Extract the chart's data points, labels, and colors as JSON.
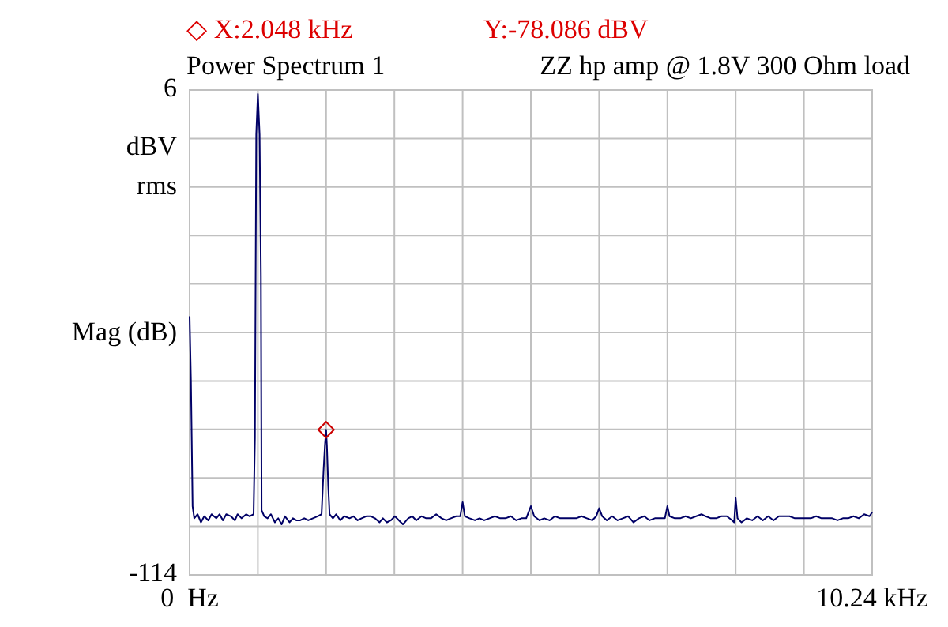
{
  "chart_data": {
    "type": "line",
    "title": "Power Spectrum 1",
    "subtitle": "ZZ hp amp @ 1.8V 300 Ohm load",
    "ylabel": "Mag (dB)",
    "annotations": [
      "◇ X:2.048 kHz",
      "Y:-78.086 dBV",
      "dBV",
      "rms"
    ],
    "xlim": [
      0,
      10.24
    ],
    "xticks": [
      {
        "value": 0,
        "label": "0  Hz"
      },
      {
        "value": 1.024,
        "label": null
      },
      {
        "value": 2.048,
        "label": null
      },
      {
        "value": 3.072,
        "label": null
      },
      {
        "value": 4.096,
        "label": null
      },
      {
        "value": 5.12,
        "label": null
      },
      {
        "value": 6.144,
        "label": null
      },
      {
        "value": 7.168,
        "label": null
      },
      {
        "value": 8.192,
        "label": null
      },
      {
        "value": 9.216,
        "label": null
      },
      {
        "value": 10.24,
        "label": "10.24 kHz"
      }
    ],
    "ylim": [
      -114,
      6
    ],
    "yticks": [
      6,
      {
        "value": -6,
        "label": null
      },
      {
        "value": -18,
        "label": null
      },
      {
        "value": -30,
        "label": null
      },
      {
        "value": -42,
        "label": null
      },
      {
        "value": -54,
        "label": null
      },
      {
        "value": -66,
        "label": null
      },
      {
        "value": -78,
        "label": null
      },
      {
        "value": -90,
        "label": null
      },
      {
        "value": -102,
        "label": null
      },
      -114
    ],
    "grid": true,
    "series": [
      {
        "color": "#000066",
        "marker": "none",
        "line_style": "solid",
        "x": [
          0,
          0.02,
          0.045,
          0.07,
          0.12,
          0.17,
          0.22,
          0.28,
          0.33,
          0.4,
          0.45,
          0.5,
          0.55,
          0.62,
          0.68,
          0.72,
          0.78,
          0.85,
          0.9,
          0.96,
          0.98,
          1.0,
          1.024,
          1.05,
          1.07,
          1.08,
          1.12,
          1.17,
          1.22,
          1.28,
          1.33,
          1.38,
          1.43,
          1.5,
          1.55,
          1.6,
          1.66,
          1.72,
          1.78,
          1.85,
          1.92,
          1.98,
          2.01,
          2.03,
          2.048,
          2.06,
          2.08,
          2.1,
          2.15,
          2.2,
          2.26,
          2.32,
          2.4,
          2.46,
          2.52,
          2.58,
          2.65,
          2.72,
          2.78,
          2.85,
          2.9,
          2.96,
          3.02,
          3.08,
          3.14,
          3.2,
          3.28,
          3.34,
          3.4,
          3.48,
          3.55,
          3.62,
          3.7,
          3.78,
          3.85,
          3.92,
          4.0,
          4.06,
          4.096,
          4.13,
          4.2,
          4.28,
          4.35,
          4.42,
          4.5,
          4.58,
          4.66,
          4.74,
          4.82,
          4.9,
          4.98,
          5.05,
          5.12,
          5.17,
          5.25,
          5.32,
          5.4,
          5.48,
          5.56,
          5.64,
          5.72,
          5.8,
          5.88,
          5.96,
          6.04,
          6.1,
          6.144,
          6.19,
          6.26,
          6.34,
          6.42,
          6.5,
          6.58,
          6.66,
          6.74,
          6.82,
          6.9,
          6.98,
          7.06,
          7.13,
          7.168,
          7.2,
          7.28,
          7.36,
          7.44,
          7.52,
          7.6,
          7.68,
          7.74,
          7.82,
          7.9,
          7.98,
          8.06,
          8.14,
          8.17,
          8.192,
          8.22,
          8.28,
          8.36,
          8.44,
          8.52,
          8.6,
          8.68,
          8.76,
          8.84,
          8.92,
          9.0,
          9.08,
          9.16,
          9.24,
          9.32,
          9.4,
          9.48,
          9.56,
          9.64,
          9.72,
          9.8,
          9.88,
          9.96,
          10.04,
          10.12,
          10.2,
          10.24
        ],
        "values": [
          -50,
          -66,
          -97,
          -100,
          -99,
          -101,
          -99.5,
          -100.5,
          -99,
          -100,
          -99,
          -100.5,
          -99,
          -99.5,
          -100.5,
          -99,
          -100,
          -99,
          -99.5,
          -99,
          -80,
          -5,
          5,
          -5,
          -40,
          -98,
          -99.5,
          -100,
          -99,
          -101,
          -100,
          -101.5,
          -99.5,
          -101,
          -100,
          -100.5,
          -100.5,
          -100,
          -100.5,
          -100,
          -99.5,
          -99,
          -88,
          -82,
          -78.086,
          -82,
          -92,
          -99,
          -100,
          -99,
          -100.5,
          -99.5,
          -100,
          -99.5,
          -100.5,
          -100,
          -99.5,
          -99.5,
          -100,
          -101,
          -100,
          -101,
          -100.5,
          -99.5,
          -100.5,
          -101.5,
          -100,
          -99.5,
          -100.5,
          -99.5,
          -100,
          -100,
          -99,
          -100,
          -100.5,
          -100,
          -99.5,
          -99.5,
          -96,
          -99.5,
          -100,
          -100.5,
          -100,
          -100.5,
          -100,
          -99.5,
          -100,
          -100,
          -99.5,
          -100.5,
          -100,
          -100,
          -97,
          -99.5,
          -100.5,
          -100,
          -100.5,
          -99.5,
          -100,
          -100,
          -100,
          -100,
          -99.5,
          -100,
          -100.5,
          -99.5,
          -97.5,
          -99.5,
          -100.5,
          -99.5,
          -100.5,
          -100,
          -99.5,
          -101,
          -100,
          -99.5,
          -100.5,
          -100,
          -100,
          -100,
          -97,
          -99.5,
          -100,
          -100,
          -99.5,
          -100,
          -99.5,
          -99,
          -99.5,
          -100,
          -100,
          -99.5,
          -99.5,
          -100.5,
          -101,
          -95,
          -100,
          -101,
          -100,
          -100.5,
          -99.5,
          -100.5,
          -99.5,
          -100.5,
          -99.5,
          -99.5,
          -99.5,
          -100,
          -100,
          -100,
          -100,
          -99.5,
          -100,
          -100,
          -100,
          -100.5,
          -100,
          -100,
          -99.5,
          -100,
          -99,
          -99.5,
          -98.5
        ]
      },
      {
        "type": "scatter",
        "color": "#cc0000",
        "marker": "diamond",
        "x": [
          2.048
        ],
        "values": [
          -78.086
        ]
      }
    ]
  }
}
